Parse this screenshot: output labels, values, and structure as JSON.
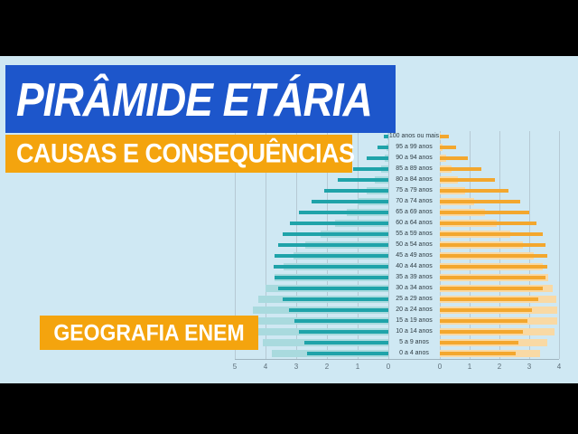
{
  "banners": {
    "title": "PIRÂMIDE ETÁRIA",
    "subtitle": "CAUSAS E CONSEQUÊNCIAS",
    "tag": "GEOGRAFIA ENEM"
  },
  "colors": {
    "title_banner_bg": "#1d56cb",
    "accent_orange": "#f4a40e",
    "content_background": "#cfe8f3",
    "letterbox": "#000000",
    "gridline": "#b6c9d4",
    "axis_text": "#5b6d78"
  },
  "chart_data": {
    "type": "bar",
    "subtype": "population-pyramid",
    "title": "",
    "grid": true,
    "age_groups": [
      "100 anos ou mais",
      "95 a 99 anos",
      "90 a 94 anos",
      "85 a 89 anos",
      "80 a 84 anos",
      "75 a 79 anos",
      "70 a 74 anos",
      "65 a 69 anos",
      "60 a 64 anos",
      "55 a 59 anos",
      "50 a 54 anos",
      "45 a 49 anos",
      "40 a 44 anos",
      "35 a 39 anos",
      "30 a 34 anos",
      "25 a 29 anos",
      "20 a 24 anos",
      "15 a 19 anos",
      "10 a 14 anos",
      "5 a 9 anos",
      "0 a 4 anos"
    ],
    "left_axis": {
      "side": "left",
      "ticks": [
        5,
        4,
        3,
        2,
        1,
        0
      ],
      "max": 5
    },
    "right_axis": {
      "side": "right",
      "ticks": [
        0,
        1,
        2,
        3,
        4
      ],
      "max": 4
    },
    "series": [
      {
        "name": "male-earlier",
        "color": "#a9dade",
        "values": [
          0.02,
          0.06,
          0.12,
          0.25,
          0.45,
          0.7,
          1.0,
          1.35,
          1.75,
          2.2,
          2.7,
          3.1,
          3.4,
          3.7,
          4.0,
          4.25,
          4.4,
          4.5,
          4.45,
          4.1,
          3.8
        ]
      },
      {
        "name": "male-later",
        "color": "#1fa3a9",
        "values": [
          0.15,
          0.35,
          0.7,
          1.15,
          1.65,
          2.1,
          2.5,
          2.9,
          3.2,
          3.45,
          3.6,
          3.7,
          3.75,
          3.7,
          3.6,
          3.45,
          3.25,
          3.05,
          2.9,
          2.75,
          2.65
        ]
      },
      {
        "name": "female-earlier",
        "color": "#f9d9a4",
        "values": [
          0.04,
          0.1,
          0.2,
          0.38,
          0.6,
          0.85,
          1.15,
          1.5,
          1.9,
          2.35,
          2.8,
          3.15,
          3.45,
          3.65,
          3.8,
          3.9,
          3.95,
          3.95,
          3.85,
          3.6,
          3.35
        ]
      },
      {
        "name": "female-later",
        "color": "#f3a72e",
        "values": [
          0.3,
          0.55,
          0.95,
          1.4,
          1.85,
          2.3,
          2.7,
          3.0,
          3.25,
          3.45,
          3.55,
          3.6,
          3.6,
          3.55,
          3.45,
          3.3,
          3.1,
          2.95,
          2.8,
          2.65,
          2.55
        ]
      }
    ]
  }
}
